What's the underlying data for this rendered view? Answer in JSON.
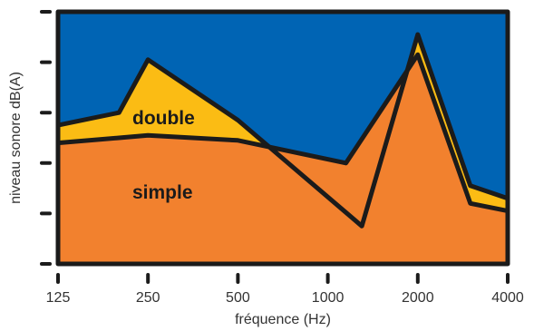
{
  "chart_data": {
    "type": "area",
    "xlabel": "fréquence (Hz)",
    "ylabel": "niveau sonore dB(A)",
    "x_scale": "log2",
    "xlim": [
      125,
      4000
    ],
    "ylim": [
      0,
      100
    ],
    "x_ticks": [
      125,
      250,
      500,
      1000,
      2000,
      4000
    ],
    "x_tick_labels": [
      "125",
      "250",
      "500",
      "1000",
      "2000",
      "4000"
    ],
    "y_ticks": [
      0,
      20,
      40,
      60,
      80,
      100
    ],
    "grid": false,
    "series": [
      {
        "name": "double",
        "x": [
          125,
          200,
          250,
          500,
          1300,
          2000,
          3000,
          4000
        ],
        "y": [
          55,
          60,
          81,
          57,
          15,
          91,
          31,
          26
        ]
      },
      {
        "name": "simple",
        "x": [
          125,
          200,
          250,
          500,
          1150,
          2000,
          3000,
          4000
        ],
        "y": [
          48,
          50,
          51,
          49,
          40,
          83,
          24,
          21
        ]
      }
    ],
    "colors": {
      "background": "#0064b4",
      "double": "#fbbc14",
      "simple": "#f2812e",
      "outline": "#1b1b1b",
      "text": "#333333"
    }
  }
}
